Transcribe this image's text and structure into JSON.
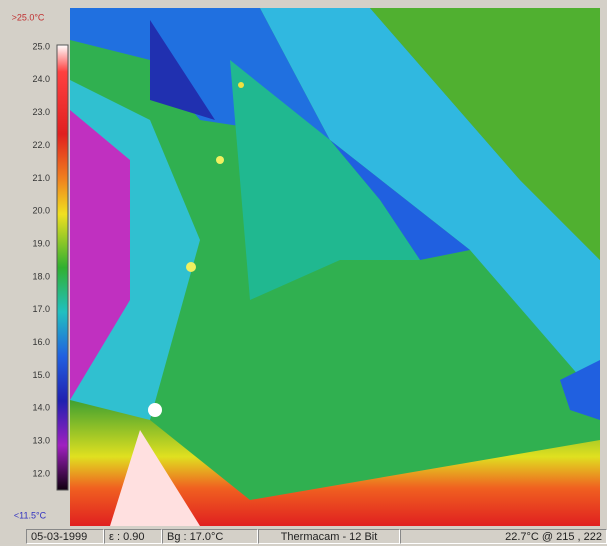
{
  "scale": {
    "max_label": ">25.0°C",
    "min_label": "<11.5°C",
    "labels": [
      "25.0",
      "24.0",
      "23.0",
      "22.0",
      "21.0",
      "20.0",
      "19.0",
      "18.0",
      "17.0",
      "16.0",
      "15.0",
      "14.0",
      "13.0",
      "12.0"
    ]
  },
  "status": {
    "date": "05-03-1999",
    "emissivity": "ε : 0.90",
    "background": "Bg : 17.0°C",
    "camera": "Thermacam - 12 Bit",
    "cursor": "22.7°C @ 215 , 222"
  }
}
